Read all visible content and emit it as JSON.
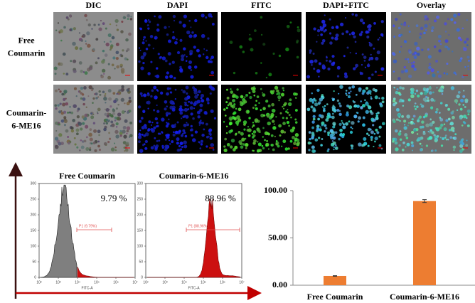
{
  "microscopy": {
    "column_labels": [
      "DIC",
      "DAPI",
      "FITC",
      "DAPI+FITC",
      "Overlay"
    ],
    "row_labels": [
      [
        "Free",
        "Coumarin"
      ],
      [
        "Coumarin-",
        "6-ME16"
      ]
    ]
  },
  "flow": {
    "panels": [
      {
        "title": "Free Coumarin",
        "percent_label": "9.79 %",
        "gate_label": "P1 (9.79%)"
      },
      {
        "title": "Coumarin-6-ME16",
        "percent_label": "88.96 %",
        "gate_label": "P1 (88.96%)"
      }
    ],
    "x_label": "FITC-A",
    "log_x": true,
    "xlim": [
      100,
      10000000
    ],
    "xticks": [
      {
        "value": 100,
        "label": "10²"
      },
      {
        "value": 1000,
        "label": "10³"
      },
      {
        "value": 10000,
        "label": "10⁴"
      },
      {
        "value": 100000,
        "label": "10⁵"
      },
      {
        "value": 1000000,
        "label": "10⁶"
      },
      {
        "value": 10000000,
        "label": "10⁷"
      }
    ],
    "ylim": [
      0,
      300
    ],
    "yticks": [
      0,
      50,
      100,
      150,
      200,
      250,
      300
    ]
  },
  "chart_data": {
    "type": "bar",
    "categories": [
      "Free Coumarin",
      "Coumarin-6-ME16"
    ],
    "values": [
      9.79,
      88.96
    ],
    "errors": [
      0.3,
      1.5
    ],
    "color": "#ed7d31",
    "ylim": [
      0,
      100
    ],
    "yticks": [
      {
        "value": 0,
        "label": "0.00"
      },
      {
        "value": 50,
        "label": "50.00"
      },
      {
        "value": 100,
        "label": "100.00"
      }
    ]
  }
}
